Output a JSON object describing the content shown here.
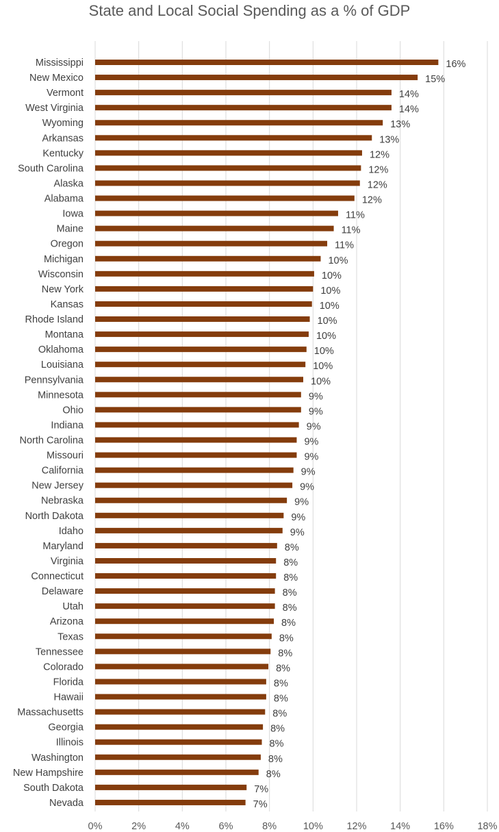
{
  "chart_data": {
    "type": "bar",
    "orientation": "horizontal",
    "title": "State and Local Social Spending as a % of GDP",
    "xlabel": "",
    "ylabel": "",
    "xlim": [
      0,
      18
    ],
    "x_ticks": [
      "0%",
      "2%",
      "4%",
      "6%",
      "8%",
      "10%",
      "12%",
      "14%",
      "16%",
      "18%"
    ],
    "grid": true,
    "bar_color": "#843c0c",
    "categories": [
      "Mississippi",
      "New Mexico",
      "Vermont",
      "West Virginia",
      "Wyoming",
      "Arkansas",
      "Kentucky",
      "South Carolina",
      "Alaska",
      "Alabama",
      "Iowa",
      "Maine",
      "Oregon",
      "Michigan",
      "Wisconsin",
      "New York",
      "Kansas",
      "Rhode Island",
      "Montana",
      "Oklahoma",
      "Louisiana",
      "Pennsylvania",
      "Minnesota",
      "Ohio",
      "Indiana",
      "North Carolina",
      "Missouri",
      "California",
      "New Jersey",
      "Nebraska",
      "North Dakota",
      "Idaho",
      "Maryland",
      "Virginia",
      "Connecticut",
      "Delaware",
      "Utah",
      "Arizona",
      "Texas",
      "Tennessee",
      "Colorado",
      "Florida",
      "Hawaii",
      "Massachusetts",
      "Georgia",
      "Illinois",
      "Washington",
      "New Hampshire",
      "South Dakota",
      "Nevada"
    ],
    "values": [
      15.75,
      14.8,
      13.6,
      13.6,
      13.2,
      12.7,
      12.25,
      12.2,
      12.15,
      11.9,
      11.15,
      10.95,
      10.65,
      10.35,
      10.05,
      10.0,
      9.95,
      9.85,
      9.8,
      9.7,
      9.65,
      9.55,
      9.45,
      9.45,
      9.35,
      9.25,
      9.25,
      9.1,
      9.05,
      8.8,
      8.65,
      8.6,
      8.35,
      8.3,
      8.3,
      8.25,
      8.25,
      8.2,
      8.1,
      8.05,
      7.95,
      7.85,
      7.85,
      7.8,
      7.7,
      7.65,
      7.6,
      7.5,
      6.95,
      6.9
    ],
    "data_labels": [
      "16%",
      "15%",
      "14%",
      "14%",
      "13%",
      "13%",
      "12%",
      "12%",
      "12%",
      "12%",
      "11%",
      "11%",
      "11%",
      "10%",
      "10%",
      "10%",
      "10%",
      "10%",
      "10%",
      "10%",
      "10%",
      "10%",
      "9%",
      "9%",
      "9%",
      "9%",
      "9%",
      "9%",
      "9%",
      "9%",
      "9%",
      "9%",
      "8%",
      "8%",
      "8%",
      "8%",
      "8%",
      "8%",
      "8%",
      "8%",
      "8%",
      "8%",
      "8%",
      "8%",
      "8%",
      "8%",
      "8%",
      "8%",
      "7%",
      "7%"
    ]
  }
}
